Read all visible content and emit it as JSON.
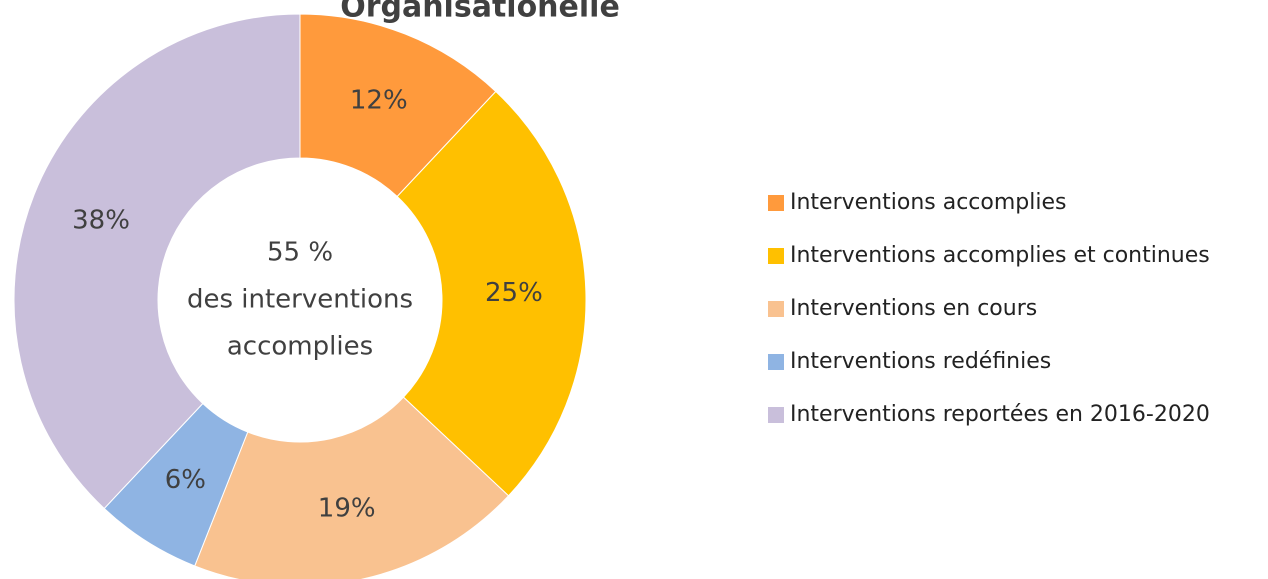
{
  "chart_data": {
    "type": "donut",
    "title": "Organisationelle",
    "center_text": [
      "55 %",
      "des interventions",
      "accomplies"
    ],
    "categories": [
      "Interventions accomplies",
      "Interventions accomplies et continues",
      "Interventions en cours",
      "Interventions redéfinies",
      "Interventions reportées en 2016-2020"
    ],
    "values": [
      12,
      25,
      19,
      6,
      38
    ],
    "value_labels": [
      "12%",
      "25%",
      "19%",
      "6%",
      "38%"
    ],
    "colors": [
      "#ff9a3c",
      "#ffc000",
      "#f9c290",
      "#8fb4e3",
      "#c9bfdb"
    ],
    "legend": "right"
  }
}
